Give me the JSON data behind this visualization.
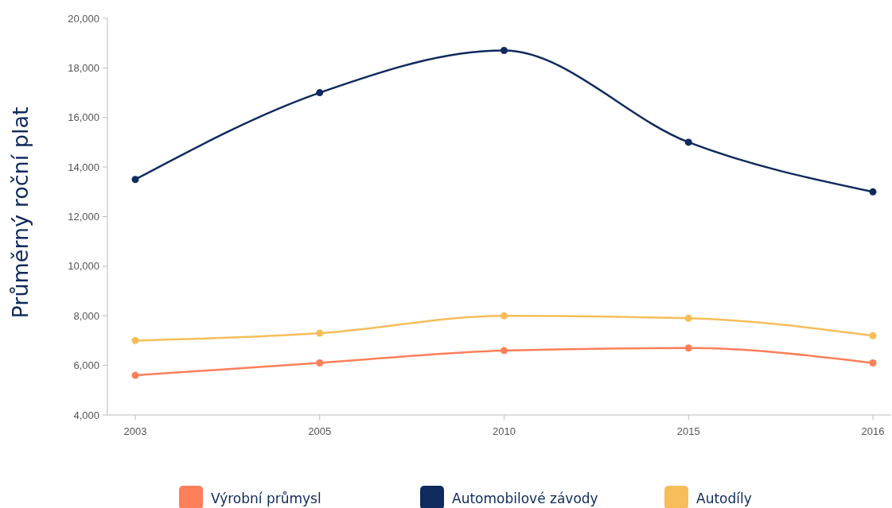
{
  "chart_data": {
    "type": "line",
    "ylabel": "Průměrný roční plat",
    "categories": [
      "2003",
      "2005",
      "2010",
      "2015",
      "2016"
    ],
    "series": [
      {
        "name": "Výrobní průmysl",
        "color": "#fc7f5a",
        "values": [
          5600,
          6100,
          6600,
          6700,
          6100
        ]
      },
      {
        "name": "Automobilové závody",
        "color": "#0f2a5c",
        "values": [
          13500,
          17000,
          18700,
          15000,
          13000
        ]
      },
      {
        "name": "Autodíly",
        "color": "#f6bd5a",
        "values": [
          7000,
          7300,
          8000,
          7900,
          7200
        ]
      }
    ],
    "ylim": [
      4000,
      20000
    ],
    "yticks": [
      {
        "value": 4000,
        "label": "4,000"
      },
      {
        "value": 6000,
        "label": "6,000"
      },
      {
        "value": 8000,
        "label": "8,000"
      },
      {
        "value": 10000,
        "label": "10,000"
      },
      {
        "value": 12000,
        "label": "12,000"
      },
      {
        "value": 14000,
        "label": "14,000"
      },
      {
        "value": 16000,
        "label": "16,000"
      },
      {
        "value": 18000,
        "label": "18,000"
      },
      {
        "value": 20000,
        "label": "20,000"
      }
    ],
    "legend": "bottom",
    "marker": "circle",
    "line_style": "solid"
  }
}
